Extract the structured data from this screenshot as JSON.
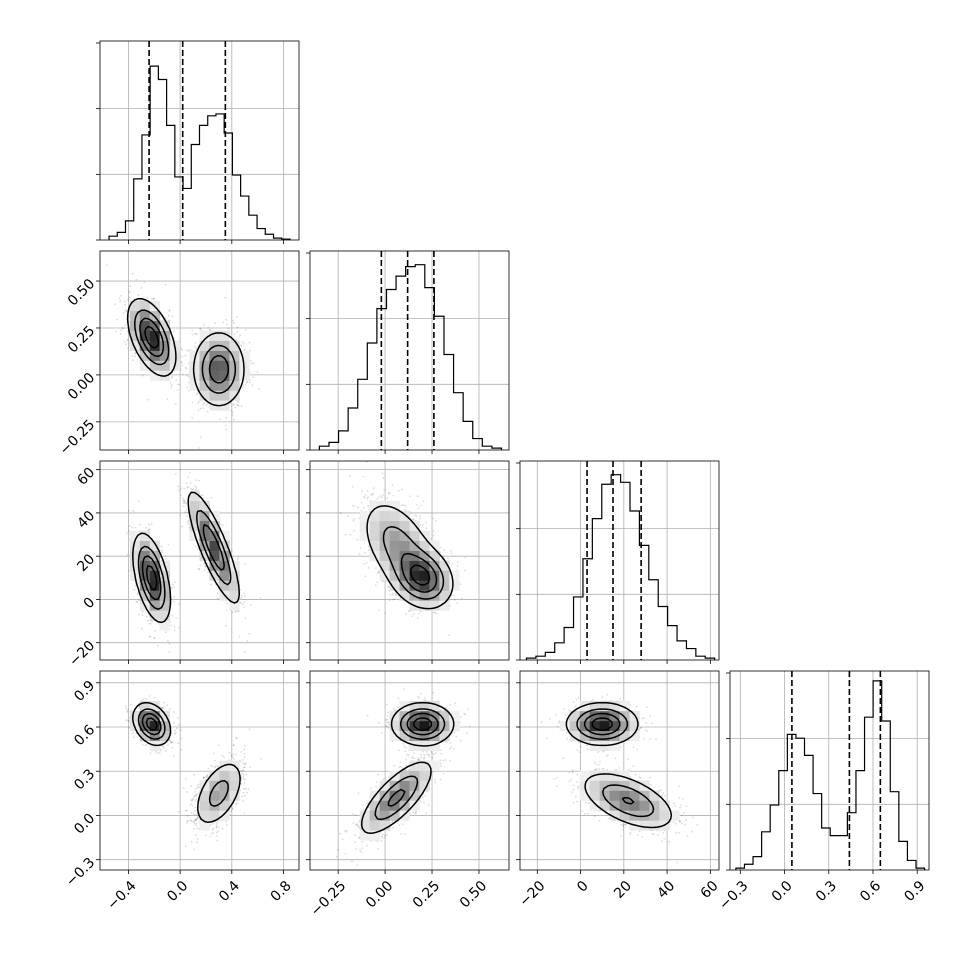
{
  "chart_data": {
    "type": "corner",
    "n_params": 4,
    "title": "",
    "params": [
      {
        "label": "",
        "range": [
          -0.62,
          0.92
        ],
        "ticks": [
          -0.4,
          0.0,
          0.4,
          0.8
        ],
        "tick_labels": [
          "−0.4",
          "0.0",
          "0.4",
          "0.8"
        ],
        "quantiles": [
          -0.24,
          0.02,
          0.35
        ]
      },
      {
        "label": "",
        "range": [
          -0.4,
          0.66
        ],
        "ticks": [
          -0.25,
          0.0,
          0.25,
          0.5
        ],
        "tick_labels": [
          "−0.25",
          "0.00",
          "0.25",
          "0.50"
        ],
        "quantiles": [
          -0.02,
          0.12,
          0.26
        ]
      },
      {
        "label": "",
        "range": [
          -28,
          64
        ],
        "ticks": [
          -20,
          0,
          20,
          40,
          60
        ],
        "tick_labels": [
          "−20",
          "0",
          "20",
          "40",
          "60"
        ],
        "quantiles": [
          3,
          15,
          28
        ]
      },
      {
        "label": "",
        "range": [
          -0.37,
          0.98
        ],
        "ticks": [
          -0.3,
          0.0,
          0.3,
          0.6,
          0.9
        ],
        "tick_labels": [
          "−0.3",
          "0.0",
          "0.3",
          "0.6",
          "0.9"
        ],
        "quantiles": [
          0.05,
          0.44,
          0.65
        ]
      }
    ],
    "histograms": [
      {
        "param": 0,
        "edges_range": [
          -0.55,
          0.85
        ],
        "counts": [
          0.02,
          0.04,
          0.1,
          0.32,
          0.55,
          0.91,
          0.84,
          0.6,
          0.33,
          0.27,
          0.5,
          0.6,
          0.65,
          0.66,
          0.56,
          0.34,
          0.23,
          0.13,
          0.06,
          0.03,
          0.01,
          0.005
        ],
        "ymax": 1.0
      },
      {
        "param": 1,
        "edges_range": [
          -0.35,
          0.62
        ],
        "counts": [
          0.02,
          0.04,
          0.1,
          0.22,
          0.37,
          0.56,
          0.74,
          0.84,
          0.91,
          0.96,
          0.97,
          0.85,
          0.7,
          0.5,
          0.3,
          0.15,
          0.06,
          0.02,
          0.01
        ],
        "ymax": 1.0
      },
      {
        "param": 2,
        "edges_range": [
          -25,
          62
        ],
        "counts": [
          0.01,
          0.02,
          0.04,
          0.09,
          0.17,
          0.33,
          0.53,
          0.74,
          0.92,
          0.97,
          0.93,
          0.78,
          0.6,
          0.42,
          0.28,
          0.18,
          0.1,
          0.06,
          0.02,
          0.01
        ],
        "ymax": 1.0
      },
      {
        "param": 3,
        "edges_range": [
          -0.33,
          0.95
        ],
        "counts": [
          0.01,
          0.03,
          0.07,
          0.2,
          0.34,
          0.52,
          0.71,
          0.69,
          0.6,
          0.4,
          0.22,
          0.18,
          0.18,
          0.3,
          0.52,
          0.8,
          0.99,
          0.78,
          0.41,
          0.15,
          0.05,
          0.01
        ],
        "ymax": 1.0
      }
    ],
    "pair_panels": [
      {
        "x": 0,
        "y": 1,
        "components": [
          {
            "center": [
              -0.22,
              0.2
            ],
            "sd": [
              0.09,
              0.1
            ],
            "rho": -0.5,
            "weight": 0.5
          },
          {
            "center": [
              0.3,
              0.03
            ],
            "sd": [
              0.1,
              0.1
            ],
            "rho": 0.0,
            "weight": 0.5
          }
        ]
      },
      {
        "x": 0,
        "y": 2,
        "components": [
          {
            "center": [
              -0.22,
              10
            ],
            "sd": [
              0.07,
              10
            ],
            "rho": -0.5,
            "weight": 0.5
          },
          {
            "center": [
              0.26,
              24
            ],
            "sd": [
              0.1,
              13
            ],
            "rho": -0.83,
            "weight": 0.5
          }
        ]
      },
      {
        "x": 1,
        "y": 2,
        "components": [
          {
            "center": [
              0.2,
              10
            ],
            "sd": [
              0.08,
              7
            ],
            "rho": -0.2,
            "weight": 0.5
          },
          {
            "center": [
              0.07,
              25
            ],
            "sd": [
              0.1,
              11
            ],
            "rho": -0.45,
            "weight": 0.5
          }
        ]
      },
      {
        "x": 0,
        "y": 3,
        "components": [
          {
            "center": [
              -0.22,
              0.62
            ],
            "sd": [
              0.07,
              0.07
            ],
            "rho": -0.3,
            "weight": 0.5
          },
          {
            "center": [
              0.3,
              0.15
            ],
            "sd": [
              0.1,
              0.12
            ],
            "rho": 0.5,
            "weight": 0.5
          }
        ]
      },
      {
        "x": 1,
        "y": 3,
        "components": [
          {
            "center": [
              0.2,
              0.62
            ],
            "sd": [
              0.08,
              0.07
            ],
            "rho": 0.0,
            "weight": 0.5
          },
          {
            "center": [
              0.06,
              0.12
            ],
            "sd": [
              0.1,
              0.13
            ],
            "rho": 0.75,
            "weight": 0.5
          }
        ]
      },
      {
        "x": 2,
        "y": 3,
        "components": [
          {
            "center": [
              10,
              0.62
            ],
            "sd": [
              8,
              0.07
            ],
            "rho": 0.0,
            "weight": 0.5
          },
          {
            "center": [
              22,
              0.1
            ],
            "sd": [
              11,
              0.1
            ],
            "rho": -0.55,
            "weight": 0.5
          }
        ]
      }
    ],
    "grid": true,
    "colors": {
      "hist": "#000000",
      "points": "#000000",
      "contour": "#000000",
      "fill_max": "#000000",
      "grid": "#b0b0b0",
      "spine": "#000000"
    }
  }
}
